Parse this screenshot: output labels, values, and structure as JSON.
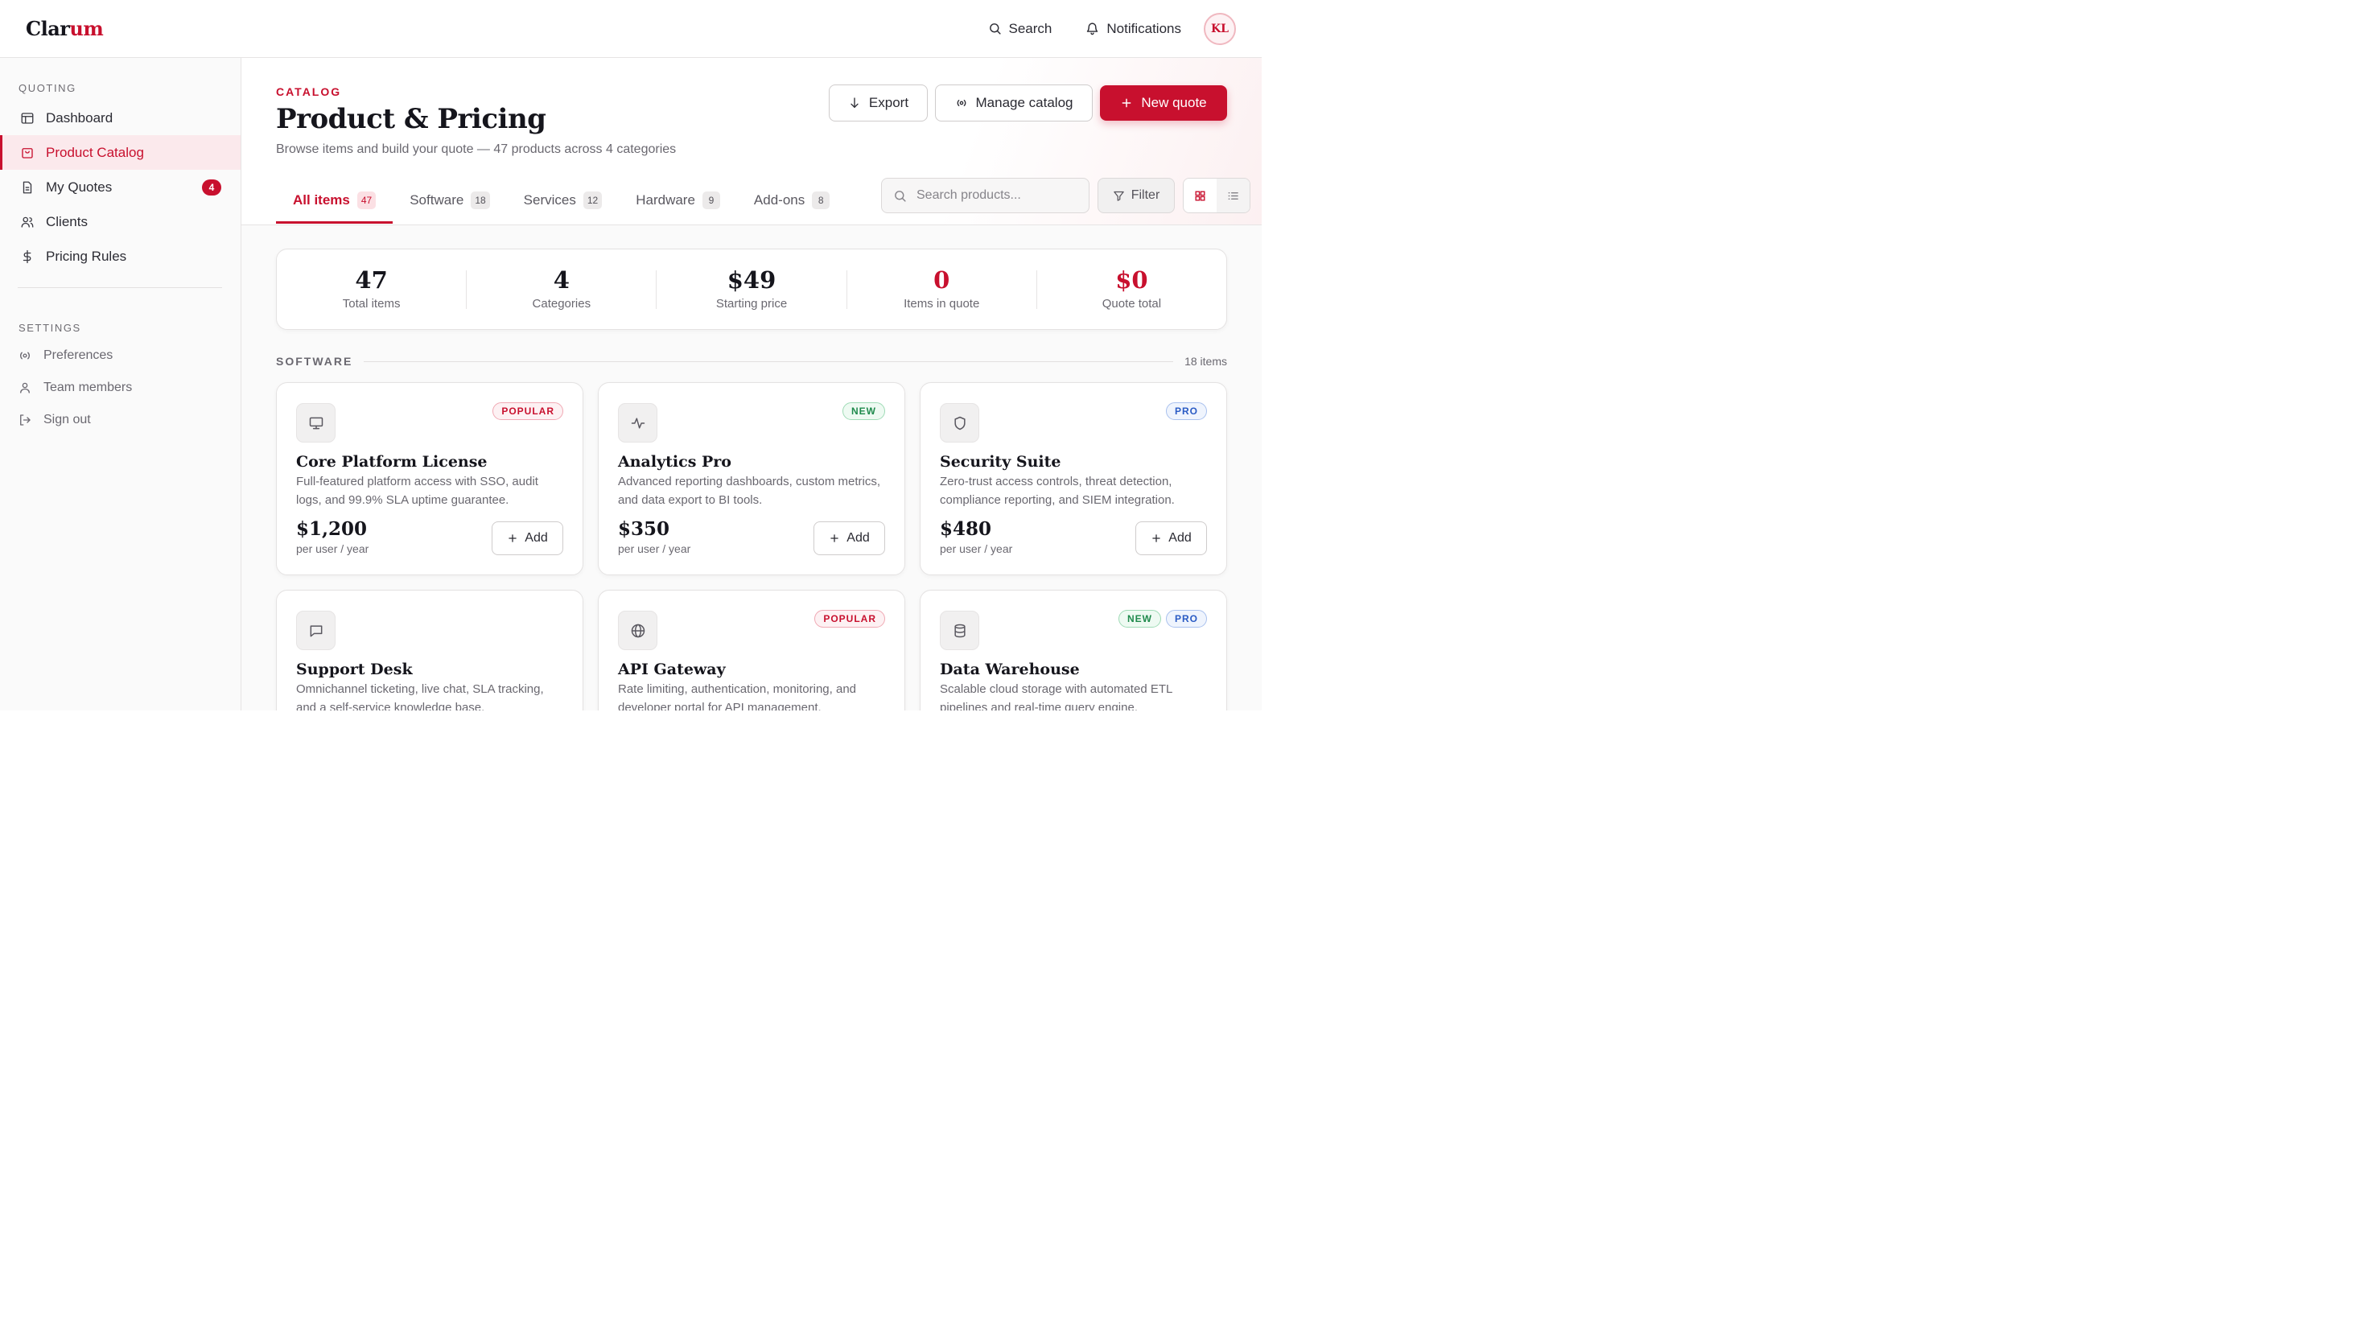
{
  "app": {
    "logo_main": "Clar",
    "logo_accent": "um",
    "search_label": "Search",
    "notifications_label": "Notifications",
    "avatar_initials": "KL"
  },
  "sidebar": {
    "section_quoting": "QUOTING",
    "section_settings": "SETTINGS",
    "items": [
      {
        "label": "Dashboard",
        "icon": "layout-icon"
      },
      {
        "label": "Product Catalog",
        "icon": "shopping-bag-icon",
        "active": true
      },
      {
        "label": "My Quotes",
        "icon": "file-icon",
        "badge": "4"
      },
      {
        "label": "Clients",
        "icon": "users-icon"
      },
      {
        "label": "Pricing Rules",
        "icon": "dollar-icon"
      }
    ],
    "settings_items": [
      {
        "label": "Preferences",
        "icon": "preferences-icon"
      },
      {
        "label": "Team members",
        "icon": "user-icon"
      },
      {
        "label": "Sign out",
        "icon": "sign-out-icon"
      }
    ]
  },
  "header": {
    "eyebrow": "CATALOG",
    "title": "Product & Pricing",
    "subtitle": "Browse items and build your quote — 47 products across 4 categories",
    "export_label": "Export",
    "manage_label": "Manage catalog",
    "new_quote_label": "New quote"
  },
  "tabs": [
    {
      "label": "All items",
      "count": "47",
      "active": true
    },
    {
      "label": "Software",
      "count": "18"
    },
    {
      "label": "Services",
      "count": "12"
    },
    {
      "label": "Hardware",
      "count": "9"
    },
    {
      "label": "Add-ons",
      "count": "8"
    }
  ],
  "search": {
    "placeholder": "Search products..."
  },
  "filter_label": "Filter",
  "stats": [
    {
      "value": "47",
      "label": "Total items",
      "accent": false
    },
    {
      "value": "4",
      "label": "Categories",
      "accent": false
    },
    {
      "value": "$49",
      "label": "Starting price",
      "accent": false
    },
    {
      "value": "0",
      "label": "Items in quote",
      "accent": true
    },
    {
      "value": "$0",
      "label": "Quote total",
      "accent": true
    }
  ],
  "section": {
    "title": "SOFTWARE",
    "count": "18 items"
  },
  "add_label": "Add",
  "products": [
    {
      "name": "Core Platform License",
      "desc": "Full-featured platform access with SSO, audit logs, and 99.9% SLA uptime guarantee.",
      "price": "$1,200",
      "unit": "per user / year",
      "tags": [
        "POPULAR"
      ],
      "icon": "monitor-icon"
    },
    {
      "name": "Analytics Pro",
      "desc": "Advanced reporting dashboards, custom metrics, and data export to BI tools.",
      "price": "$350",
      "unit": "per user / year",
      "tags": [
        "NEW"
      ],
      "icon": "activity-icon"
    },
    {
      "name": "Security Suite",
      "desc": "Zero-trust access controls, threat detection, compliance reporting, and SIEM integration.",
      "price": "$480",
      "unit": "per user / year",
      "tags": [
        "PRO"
      ],
      "icon": "shield-icon"
    },
    {
      "name": "Support Desk",
      "desc": "Omnichannel ticketing, live chat, SLA tracking, and a self-service knowledge base.",
      "price": "",
      "unit": "",
      "tags": [],
      "icon": "message-icon"
    },
    {
      "name": "API Gateway",
      "desc": "Rate limiting, authentication, monitoring, and developer portal for API management.",
      "price": "",
      "unit": "",
      "tags": [
        "POPULAR"
      ],
      "icon": "globe-icon"
    },
    {
      "name": "Data Warehouse",
      "desc": "Scalable cloud storage with automated ETL pipelines and real-time query engine.",
      "price": "",
      "unit": "",
      "tags": [
        "NEW",
        "PRO"
      ],
      "icon": "database-icon"
    }
  ],
  "colors": {
    "accent": "#c8102e",
    "new": "#1f8a4c",
    "pro": "#2a5bc4"
  }
}
